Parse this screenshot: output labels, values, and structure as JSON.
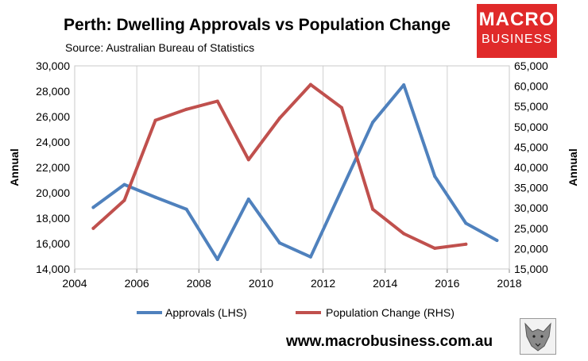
{
  "header": {
    "title": "Perth: Dwelling Approvals vs Population Change",
    "subtitle": "Source: Australian Bureau of Statistics"
  },
  "branding": {
    "logo_line1": "MACRO",
    "logo_line2": "BUSINESS",
    "website": "www.macrobusiness.com.au",
    "logo_color": "#e02a2a"
  },
  "chart_data": {
    "type": "line",
    "xlim": [
      2004,
      2018
    ],
    "x_ticks": [
      2004,
      2006,
      2008,
      2010,
      2012,
      2014,
      2016,
      2018
    ],
    "x_tick_labels": [
      "2004",
      "2006",
      "2008",
      "2010",
      "2012",
      "2014",
      "2016",
      "2018"
    ],
    "ylabel_left": "Annual",
    "ylabel_right": "Annual",
    "ylim_left": [
      14000,
      30000
    ],
    "ylim_right": [
      15000,
      65000
    ],
    "y_left_ticks": [
      14000,
      16000,
      18000,
      20000,
      22000,
      24000,
      26000,
      28000,
      30000
    ],
    "y_left_tick_labels": [
      "14,000",
      "16,000",
      "18,000",
      "20,000",
      "22,000",
      "24,000",
      "26,000",
      "28,000",
      "30,000"
    ],
    "y_right_ticks": [
      15000,
      20000,
      25000,
      30000,
      35000,
      40000,
      45000,
      50000,
      55000,
      60000,
      65000
    ],
    "y_right_tick_labels": [
      "15,000",
      "20,000",
      "25,000",
      "30,000",
      "35,000",
      "40,000",
      "45,000",
      "50,000",
      "55,000",
      "60,000",
      "65,000"
    ],
    "grid": "vertical",
    "legend_position": "bottom",
    "series": [
      {
        "name": "Approvals (LHS)",
        "axis": "left",
        "color": "#4f81bd",
        "x": [
          2004.6,
          2005.6,
          2006.6,
          2007.6,
          2008.6,
          2009.6,
          2010.6,
          2011.6,
          2012.6,
          2013.6,
          2014.6,
          2015.6,
          2016.6,
          2017.6
        ],
        "values": [
          18850,
          20650,
          19650,
          18700,
          14750,
          19500,
          16050,
          14950,
          20250,
          25550,
          28500,
          21300,
          17600,
          16250
        ]
      },
      {
        "name": "Population Change (RHS)",
        "axis": "right",
        "color": "#c0504d",
        "x": [
          2004.6,
          2005.6,
          2006.6,
          2007.6,
          2008.6,
          2009.6,
          2010.6,
          2011.6,
          2012.6,
          2013.6,
          2014.6,
          2015.6,
          2016.6
        ],
        "values": [
          25000,
          31900,
          51600,
          54300,
          56300,
          41900,
          52100,
          60400,
          54700,
          29700,
          23700,
          20100,
          21100
        ]
      }
    ]
  }
}
